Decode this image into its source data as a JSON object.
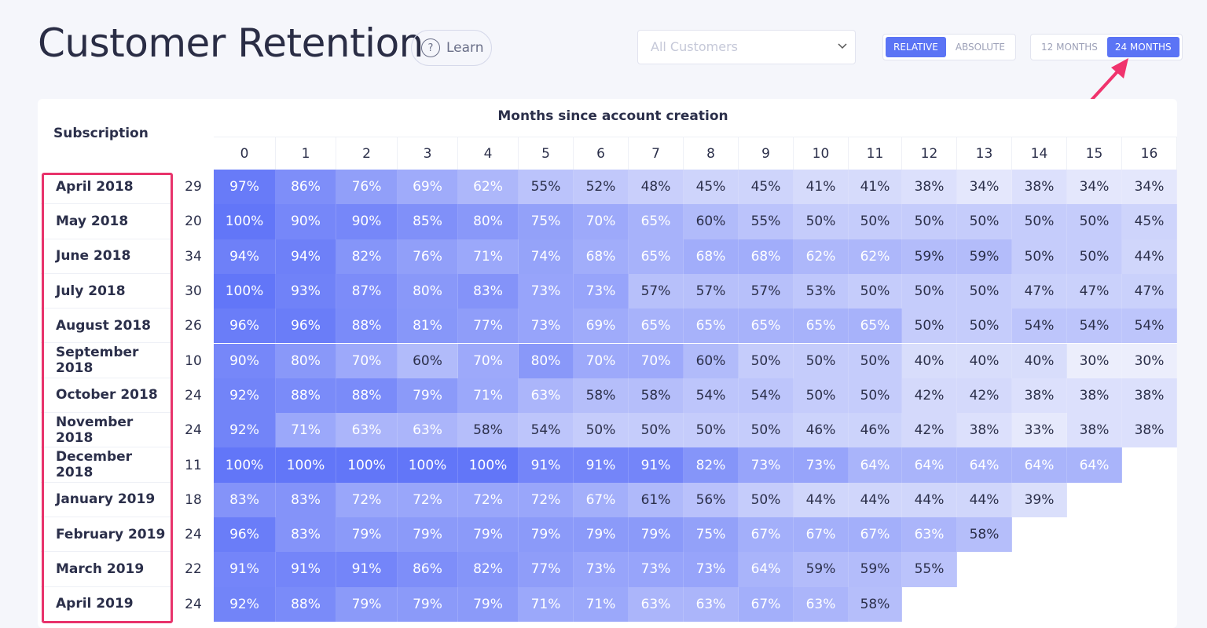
{
  "header": {
    "title": "Customer Retention",
    "learn": "Learn",
    "segment": "All Customers",
    "mode": [
      "RELATIVE",
      "ABSOLUTE"
    ],
    "range": [
      "12 MONTHS",
      "24 MONTHS"
    ]
  },
  "table": {
    "row_header": "Subscription",
    "column_group": "Months since account creation",
    "columns": [
      "0",
      "1",
      "2",
      "3",
      "4",
      "5",
      "6",
      "7",
      "8",
      "9",
      "10",
      "11",
      "12",
      "13",
      "14",
      "15",
      "16"
    ],
    "rows": [
      {
        "label": "April 2018",
        "count": 29,
        "cells": [
          "97%",
          "86%",
          "76%",
          "69%",
          "62%",
          "55%",
          "52%",
          "48%",
          "45%",
          "45%",
          "41%",
          "41%",
          "38%",
          "34%",
          "38%",
          "34%",
          "34%"
        ]
      },
      {
        "label": "May 2018",
        "count": 20,
        "cells": [
          "100%",
          "90%",
          "90%",
          "85%",
          "80%",
          "75%",
          "70%",
          "65%",
          "60%",
          "55%",
          "50%",
          "50%",
          "50%",
          "50%",
          "50%",
          "50%",
          "45%"
        ]
      },
      {
        "label": "June 2018",
        "count": 34,
        "cells": [
          "94%",
          "94%",
          "82%",
          "76%",
          "71%",
          "74%",
          "68%",
          "65%",
          "68%",
          "68%",
          "62%",
          "62%",
          "59%",
          "59%",
          "50%",
          "50%",
          "44%"
        ]
      },
      {
        "label": "July 2018",
        "count": 30,
        "cells": [
          "100%",
          "93%",
          "87%",
          "80%",
          "83%",
          "73%",
          "73%",
          "57%",
          "57%",
          "57%",
          "53%",
          "50%",
          "50%",
          "50%",
          "47%",
          "47%",
          "47%"
        ]
      },
      {
        "label": "August 2018",
        "count": 26,
        "cells": [
          "96%",
          "96%",
          "88%",
          "81%",
          "77%",
          "73%",
          "69%",
          "65%",
          "65%",
          "65%",
          "65%",
          "65%",
          "50%",
          "50%",
          "54%",
          "54%",
          "54%"
        ]
      },
      {
        "label": "September 2018",
        "count": 10,
        "cells": [
          "90%",
          "80%",
          "70%",
          "60%",
          "70%",
          "80%",
          "70%",
          "70%",
          "60%",
          "50%",
          "50%",
          "50%",
          "40%",
          "40%",
          "40%",
          "30%",
          "30%"
        ]
      },
      {
        "label": "October 2018",
        "count": 24,
        "cells": [
          "92%",
          "88%",
          "88%",
          "79%",
          "71%",
          "63%",
          "58%",
          "58%",
          "54%",
          "54%",
          "50%",
          "50%",
          "42%",
          "42%",
          "38%",
          "38%",
          "38%"
        ]
      },
      {
        "label": "November 2018",
        "count": 24,
        "cells": [
          "92%",
          "71%",
          "63%",
          "63%",
          "58%",
          "54%",
          "50%",
          "50%",
          "50%",
          "50%",
          "46%",
          "46%",
          "42%",
          "38%",
          "33%",
          "38%",
          "38%"
        ]
      },
      {
        "label": "December 2018",
        "count": 11,
        "cells": [
          "100%",
          "100%",
          "100%",
          "100%",
          "100%",
          "91%",
          "91%",
          "91%",
          "82%",
          "73%",
          "73%",
          "64%",
          "64%",
          "64%",
          "64%",
          "64%"
        ]
      },
      {
        "label": "January 2019",
        "count": 18,
        "cells": [
          "83%",
          "83%",
          "72%",
          "72%",
          "72%",
          "72%",
          "67%",
          "61%",
          "56%",
          "50%",
          "44%",
          "44%",
          "44%",
          "44%",
          "39%"
        ]
      },
      {
        "label": "February 2019",
        "count": 24,
        "cells": [
          "96%",
          "83%",
          "79%",
          "79%",
          "79%",
          "79%",
          "79%",
          "79%",
          "75%",
          "67%",
          "67%",
          "67%",
          "63%",
          "58%"
        ]
      },
      {
        "label": "March 2019",
        "count": 22,
        "cells": [
          "91%",
          "91%",
          "91%",
          "86%",
          "82%",
          "77%",
          "73%",
          "73%",
          "73%",
          "64%",
          "59%",
          "59%",
          "55%"
        ]
      },
      {
        "label": "April 2019",
        "count": 24,
        "cells": [
          "92%",
          "88%",
          "79%",
          "79%",
          "79%",
          "71%",
          "71%",
          "63%",
          "63%",
          "67%",
          "63%",
          "58%"
        ]
      }
    ]
  }
}
